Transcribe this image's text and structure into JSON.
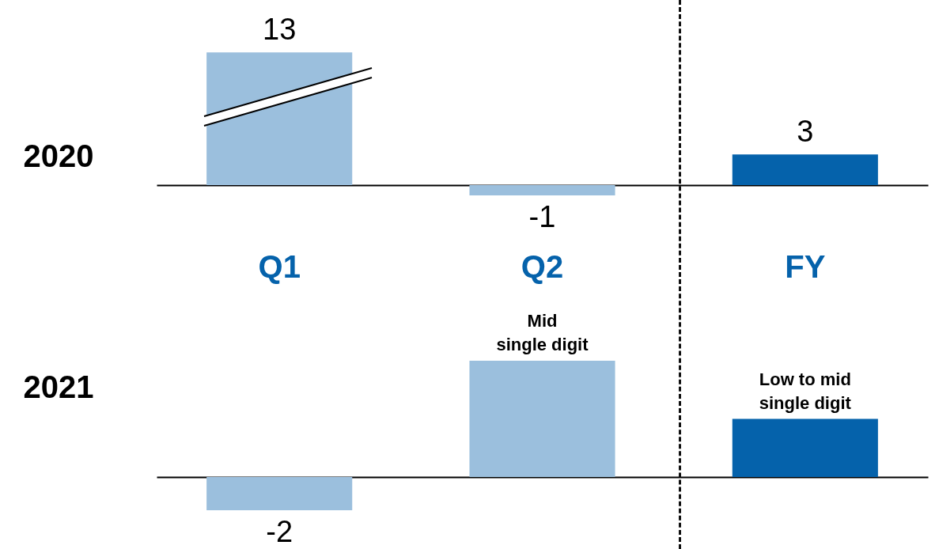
{
  "chart_data": [
    {
      "type": "bar",
      "ylabel": "2020",
      "categories": [
        "Q1",
        "Q2",
        "FY"
      ],
      "values": [
        13,
        -1,
        3
      ],
      "colors": [
        "#9bbfdd",
        "#9bbfdd",
        "#0562ab"
      ],
      "data_labels": true,
      "tick_labels": "x"
    },
    {
      "type": "bar",
      "ylabel": "2021",
      "categories": [
        null,
        null,
        null
      ],
      "values": [
        -2,
        7,
        3.5
      ],
      "value_labels": [
        "-2",
        "Mid\nsingle digit",
        "Low to mid\nsingle digit"
      ],
      "colors": [
        "#9bbfdd",
        "#9bbfdd",
        "#0562ab"
      ],
      "tick_labels": false
    }
  ]
}
